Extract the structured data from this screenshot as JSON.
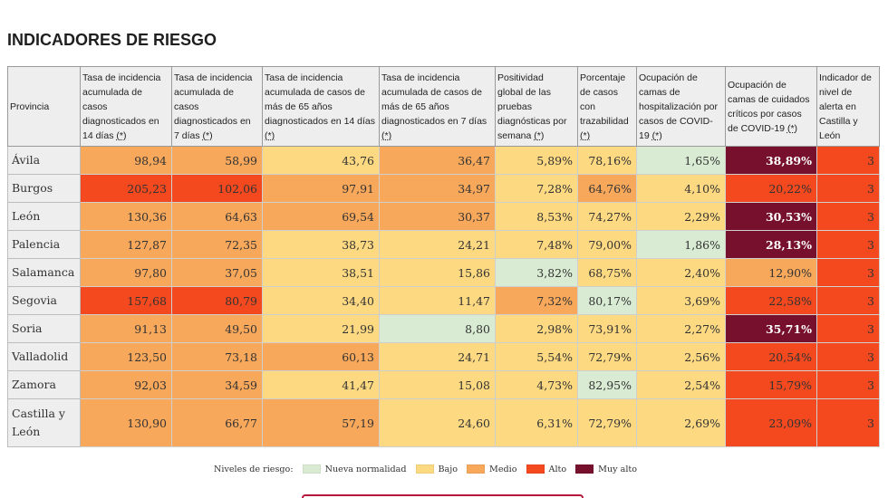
{
  "title": "INDICADORES DE RIESGO",
  "legend": {
    "label": "Niveles de riesgo:",
    "levels": [
      {
        "label": "Nueva normalidad",
        "color": "#d9ecd3"
      },
      {
        "label": "Bajo",
        "color": "#fdd982"
      },
      {
        "label": "Medio",
        "color": "#f8a85b"
      },
      {
        "label": "Alto",
        "color": "#f4491e"
      },
      {
        "label": "Muy alto",
        "color": "#76102c"
      }
    ]
  },
  "table": {
    "columns": [
      {
        "label": "Provincia"
      },
      {
        "label": "Tasa de incidencia acumulada de casos diagnosticados en 14 días",
        "note": "(*)"
      },
      {
        "label": "Tasa de incidencia acumulada de casos diagnosticados en 7 días",
        "note": "(*)"
      },
      {
        "label": "Tasa de incidencia acumulada de casos de más de 65 años diagnosticados en 14 días",
        "note": "(*)"
      },
      {
        "label": "Tasa de incidencia acumulada de casos de más de 65 años diagnosticados en 7 días",
        "note": "(*)"
      },
      {
        "label": "Positividad global de las pruebas diagnósticas por semana",
        "note": "(*)"
      },
      {
        "label": "Porcentaje de casos con trazabilidad",
        "note": "(*)"
      },
      {
        "label": "Ocupación de camas de hospitalización por casos de COVID-19",
        "note": "(*)"
      },
      {
        "label": "Ocupación de camas de cuidados críticos por casos de COVID-19",
        "note": "(*)"
      },
      {
        "label": "Indicador de nivel de alerta en Castilla y León"
      }
    ],
    "rows": [
      {
        "province": "Ávila",
        "cells": [
          {
            "value": "98,94",
            "level": 2
          },
          {
            "value": "58,99",
            "level": 2
          },
          {
            "value": "43,76",
            "level": 1
          },
          {
            "value": "36,47",
            "level": 2
          },
          {
            "value": "5,89%",
            "level": 1
          },
          {
            "value": "78,16%",
            "level": 1
          },
          {
            "value": "1,65%",
            "level": 0
          },
          {
            "value": "38,89%",
            "level": 4
          },
          {
            "value": "3",
            "level": 3
          }
        ]
      },
      {
        "province": "Burgos",
        "cells": [
          {
            "value": "205,23",
            "level": 3
          },
          {
            "value": "102,06",
            "level": 3
          },
          {
            "value": "97,91",
            "level": 2
          },
          {
            "value": "34,97",
            "level": 2
          },
          {
            "value": "7,28%",
            "level": 1
          },
          {
            "value": "64,76%",
            "level": 2
          },
          {
            "value": "4,10%",
            "level": 1
          },
          {
            "value": "20,22%",
            "level": 3
          },
          {
            "value": "3",
            "level": 3
          }
        ]
      },
      {
        "province": "León",
        "cells": [
          {
            "value": "130,36",
            "level": 2
          },
          {
            "value": "64,63",
            "level": 2
          },
          {
            "value": "69,54",
            "level": 2
          },
          {
            "value": "30,37",
            "level": 2
          },
          {
            "value": "8,53%",
            "level": 1
          },
          {
            "value": "74,27%",
            "level": 1
          },
          {
            "value": "2,29%",
            "level": 1
          },
          {
            "value": "30,53%",
            "level": 4
          },
          {
            "value": "3",
            "level": 3
          }
        ]
      },
      {
        "province": "Palencia",
        "cells": [
          {
            "value": "127,87",
            "level": 2
          },
          {
            "value": "72,35",
            "level": 2
          },
          {
            "value": "38,73",
            "level": 1
          },
          {
            "value": "24,21",
            "level": 1
          },
          {
            "value": "7,48%",
            "level": 1
          },
          {
            "value": "79,00%",
            "level": 1
          },
          {
            "value": "1,86%",
            "level": 0
          },
          {
            "value": "28,13%",
            "level": 4
          },
          {
            "value": "3",
            "level": 3
          }
        ]
      },
      {
        "province": "Salamanca",
        "cells": [
          {
            "value": "97,80",
            "level": 2
          },
          {
            "value": "37,05",
            "level": 2
          },
          {
            "value": "38,51",
            "level": 1
          },
          {
            "value": "15,86",
            "level": 1
          },
          {
            "value": "3,82%",
            "level": 0
          },
          {
            "value": "68,75%",
            "level": 1
          },
          {
            "value": "2,40%",
            "level": 1
          },
          {
            "value": "12,90%",
            "level": 2
          },
          {
            "value": "3",
            "level": 3
          }
        ]
      },
      {
        "province": "Segovia",
        "cells": [
          {
            "value": "157,68",
            "level": 3
          },
          {
            "value": "80,79",
            "level": 3
          },
          {
            "value": "34,40",
            "level": 1
          },
          {
            "value": "11,47",
            "level": 1
          },
          {
            "value": "7,32%",
            "level": 2
          },
          {
            "value": "80,17%",
            "level": 0
          },
          {
            "value": "3,69%",
            "level": 1
          },
          {
            "value": "22,58%",
            "level": 3
          },
          {
            "value": "3",
            "level": 3
          }
        ]
      },
      {
        "province": "Soria",
        "cells": [
          {
            "value": "91,13",
            "level": 2
          },
          {
            "value": "49,50",
            "level": 2
          },
          {
            "value": "21,99",
            "level": 1
          },
          {
            "value": "8,80",
            "level": 0
          },
          {
            "value": "2,98%",
            "level": 1
          },
          {
            "value": "73,91%",
            "level": 1
          },
          {
            "value": "2,27%",
            "level": 1
          },
          {
            "value": "35,71%",
            "level": 4
          },
          {
            "value": "3",
            "level": 3
          }
        ]
      },
      {
        "province": "Valladolid",
        "cells": [
          {
            "value": "123,50",
            "level": 2
          },
          {
            "value": "73,18",
            "level": 2
          },
          {
            "value": "60,13",
            "level": 2
          },
          {
            "value": "24,71",
            "level": 1
          },
          {
            "value": "5,54%",
            "level": 1
          },
          {
            "value": "72,79%",
            "level": 1
          },
          {
            "value": "2,56%",
            "level": 1
          },
          {
            "value": "20,54%",
            "level": 3
          },
          {
            "value": "3",
            "level": 3
          }
        ]
      },
      {
        "province": "Zamora",
        "cells": [
          {
            "value": "92,03",
            "level": 2
          },
          {
            "value": "34,59",
            "level": 2
          },
          {
            "value": "41,47",
            "level": 1
          },
          {
            "value": "15,08",
            "level": 1
          },
          {
            "value": "4,73%",
            "level": 1
          },
          {
            "value": "82,95%",
            "level": 0
          },
          {
            "value": "2,54%",
            "level": 1
          },
          {
            "value": "15,79%",
            "level": 3
          },
          {
            "value": "3",
            "level": 3
          }
        ]
      },
      {
        "province": "Castilla y León",
        "cells": [
          {
            "value": "130,90",
            "level": 2
          },
          {
            "value": "66,77",
            "level": 2
          },
          {
            "value": "57,19",
            "level": 2
          },
          {
            "value": "24,60",
            "level": 1
          },
          {
            "value": "6,31%",
            "level": 1
          },
          {
            "value": "72,79%",
            "level": 1
          },
          {
            "value": "2,69%",
            "level": 1
          },
          {
            "value": "23,09%",
            "level": 3
          },
          {
            "value": "3",
            "level": 3
          }
        ]
      }
    ]
  }
}
